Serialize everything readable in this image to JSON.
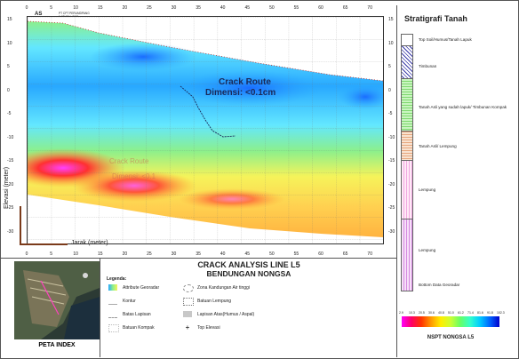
{
  "section": {
    "start_label": "AS",
    "profile_note": "PT CPT PERUMDPANG NATURAL 2021",
    "crack_route_label": "Crack Route",
    "crack_dim_label": "Dimensi: <0.1cm",
    "ghost_crack_label": "Crack Route",
    "ghost_dim_label": "Dimensi: <0.1",
    "y_axis_label": "Elevasi (meter)",
    "x_axis_label": "Jarak (meter)",
    "x_ticks": [
      "0",
      "5",
      "10",
      "15",
      "20",
      "25",
      "30",
      "35",
      "40",
      "45",
      "50",
      "55",
      "60",
      "65",
      "70"
    ],
    "y_ticks_left": [
      "15",
      "10",
      "5",
      "0",
      "-5",
      "-10",
      "-15",
      "-20",
      "-25",
      "-30"
    ],
    "y_ticks_right": [
      "15",
      "10",
      "5",
      "0",
      "-5",
      "-10",
      "-15",
      "-20",
      "-25",
      "-30"
    ]
  },
  "stratigraphy": {
    "title": "Stratigrafi Tanah",
    "layers": [
      {
        "label": "Top Soil/Humus/Tanah Lapuk",
        "color": "#ffffff"
      },
      {
        "label": "Timbunan",
        "color": "#3a3aa8"
      },
      {
        "label": "Tanah Asli yang sudah lapuk/ Timbunan Kompak",
        "color": "#9fe38f"
      },
      {
        "label": "Tanah Asli/ Lempung",
        "color": "#f3cfb4"
      },
      {
        "label": "Lempung",
        "color": "#ffe9f7"
      },
      {
        "label": "Lempung",
        "color": "#f3c8f5"
      },
      {
        "label": "Bottom Data Georadar",
        "color": "#ffffff"
      }
    ]
  },
  "title": {
    "line1": "CRACK ANALYSIS LINE L5",
    "line2": "BENDUNGAN NONGSA"
  },
  "legend": {
    "heading": "Legenda:",
    "items": [
      {
        "label": "Attribute Georadar",
        "icon": "georadar-swatch"
      },
      {
        "label": "Zona Kandungan Air tinggi",
        "icon": "water-zone-icon"
      },
      {
        "label": "Kontur",
        "icon": "contour-icon"
      },
      {
        "label": "Batuan Lempung",
        "icon": "clay-rock-icon"
      },
      {
        "label": "Batas Lapisan",
        "icon": "layer-boundary-icon"
      },
      {
        "label": "Lapisan Atas(Humus / Aspal)",
        "icon": "top-layer-icon"
      },
      {
        "label": "Batuan Kompak",
        "icon": "compact-rock-icon"
      },
      {
        "label": "Top Elevasi",
        "icon": "plus-icon"
      }
    ]
  },
  "peta_index": {
    "label": "PETA INDEX"
  },
  "nspt_scale": {
    "title": "NSPT NONGSA L5",
    "ticks": [
      "2.9",
      "10.3",
      "20.5",
      "30.6",
      "40.8",
      "51.0",
      "61.2",
      "71.4",
      "81.6",
      "91.8",
      "102.3"
    ],
    "colors": [
      "#ff00ff",
      "#ff0066",
      "#ff3300",
      "#ff9900",
      "#ffee00",
      "#ccff33",
      "#66ff66",
      "#33ffcc",
      "#00ccff",
      "#0066ff",
      "#0000cc"
    ]
  },
  "colors": {
    "blue_zone": "#28a8ff",
    "cyan_zone": "#63e7ff",
    "green_zone": "#8cf08c",
    "yellow_zone": "#f6f35a",
    "orange_zone": "#ffb340",
    "red_zone": "#ff4030",
    "magenta_zone": "#ff40ff"
  }
}
